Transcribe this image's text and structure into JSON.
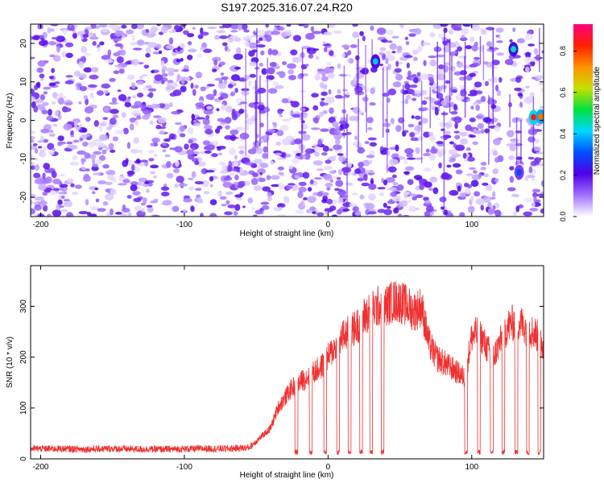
{
  "title": "S197.2025.316.07.24.R20",
  "chart_data": [
    {
      "type": "heatmap",
      "xlabel": "Height of straight line (km)",
      "ylabel": "Frequency (Hz)",
      "xlim": [
        -207,
        150
      ],
      "ylim": [
        -25,
        25
      ],
      "xticks": [
        -200,
        -100,
        0,
        100
      ],
      "yticks": [
        -20,
        -10,
        0,
        10,
        20
      ],
      "colorbar": {
        "label": "Normalized spectral amplitude",
        "range": [
          0,
          0.93
        ],
        "ticks": [
          "0.0",
          "0.2",
          "0.4",
          "0.6",
          "0.8"
        ],
        "tick_values": [
          0,
          0.2,
          0.4,
          0.6,
          0.8
        ],
        "colors": [
          "#ffffff",
          "#a070ff",
          "#5000e8",
          "#0050ff",
          "#00d8ff",
          "#00e040",
          "#c8e000",
          "#ff9000",
          "#ff2000",
          "#ff0080"
        ]
      },
      "hotspots": [
        {
          "x": 33,
          "y": 15.3,
          "value": 0.4
        },
        {
          "x": 129,
          "y": 18.5,
          "value": 0.45
        },
        {
          "x": 143,
          "y": 0.8,
          "value": 0.85
        },
        {
          "x": 148,
          "y": 1.0,
          "value": 0.75
        },
        {
          "x": 133,
          "y": -13.5,
          "value": 0.3
        }
      ],
      "gap_bands": [
        [
          32,
          37
        ],
        [
          120,
          126
        ],
        [
          135,
          138
        ]
      ]
    },
    {
      "type": "line",
      "xlabel": "Height of straight line (km)",
      "ylabel": "SNR (10 * v/v)",
      "xlim": [
        -207,
        150
      ],
      "ylim": [
        0,
        380
      ],
      "xticks": [
        -200,
        -100,
        0,
        100
      ],
      "yticks": [
        0,
        100,
        200,
        300
      ],
      "color": "#f03030",
      "series": [
        {
          "x": [
            -207,
            -190,
            -170,
            -150,
            -130,
            -110,
            -90,
            -70,
            -55,
            -40,
            -35,
            -30,
            -25,
            -20,
            -15,
            -10,
            -5,
            0,
            5,
            10,
            15,
            20,
            25,
            30,
            35,
            40,
            45,
            50,
            55,
            60,
            65,
            70,
            75,
            80,
            85,
            90,
            95,
            100,
            105,
            110,
            115,
            120,
            125,
            130,
            135,
            140,
            145,
            150
          ],
          "values": [
            20,
            20,
            19,
            20,
            19,
            19,
            20,
            20,
            22,
            60,
            100,
            120,
            140,
            150,
            160,
            170,
            180,
            200,
            220,
            240,
            250,
            260,
            280,
            290,
            300,
            300,
            310,
            310,
            300,
            290,
            300,
            230,
            200,
            190,
            180,
            170,
            160,
            240,
            250,
            220,
            200,
            230,
            260,
            270,
            265,
            255,
            245,
            220
          ]
        }
      ],
      "dropouts": [
        [
          -23,
          -21
        ],
        [
          -13,
          -11
        ],
        [
          -3,
          -1
        ],
        [
          6,
          8
        ],
        [
          14,
          16
        ],
        [
          22,
          24
        ],
        [
          29,
          31
        ],
        [
          37,
          39
        ],
        [
          95,
          97
        ],
        [
          104,
          106
        ],
        [
          113,
          115
        ],
        [
          121,
          123
        ],
        [
          130,
          132
        ],
        [
          138,
          140
        ],
        [
          146,
          148
        ]
      ]
    }
  ]
}
